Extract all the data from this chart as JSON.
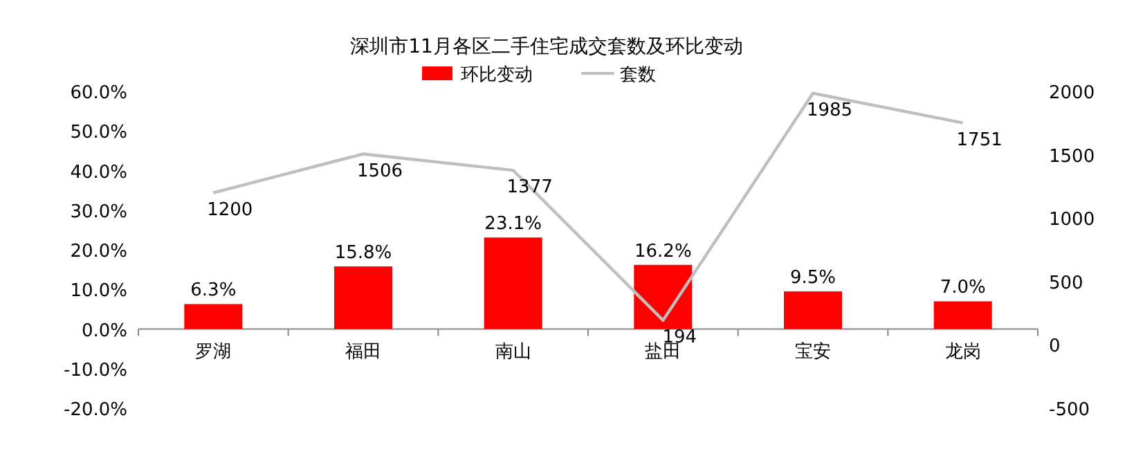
{
  "chart_data": {
    "type": "bar",
    "title": "深圳市11月各区二手住宅成交套数及环比变动",
    "categories": [
      "罗湖",
      "福田",
      "南山",
      "盐田",
      "宝安",
      "龙岗"
    ],
    "series": [
      {
        "name": "环比变动",
        "color": "#ff0000",
        "values": [
          6.3,
          15.8,
          23.1,
          16.2,
          9.5,
          7.0
        ],
        "value_labels": [
          "6.3%",
          "15.8%",
          "23.1%",
          "16.2%",
          "9.5%",
          "7.0%"
        ]
      },
      {
        "name": "套数",
        "type": "line",
        "axis": "y2",
        "color": "#bfbfbf",
        "values": [
          1200,
          1506,
          1377,
          194,
          1985,
          1751
        ],
        "value_labels": [
          "1200",
          "1506",
          "1377",
          "194",
          "1985",
          "1751"
        ]
      }
    ],
    "ylim": [
      -20,
      60
    ],
    "yticks": [
      {
        "value": -20,
        "label": "-20.0%"
      },
      {
        "value": -10,
        "label": "-10.0%"
      },
      {
        "value": 0,
        "label": "0.0%"
      },
      {
        "value": 10,
        "label": "10.0%"
      },
      {
        "value": 20,
        "label": "20.0%"
      },
      {
        "value": 30,
        "label": "30.0%"
      },
      {
        "value": 40,
        "label": "40.0%"
      },
      {
        "value": 50,
        "label": "50.0%"
      },
      {
        "value": 60,
        "label": "60.0%"
      }
    ],
    "y2lim": [
      -500,
      2000
    ],
    "y2ticks": [
      -500,
      0,
      500,
      1000,
      1500,
      2000
    ],
    "legend": "top",
    "marker": "none"
  }
}
